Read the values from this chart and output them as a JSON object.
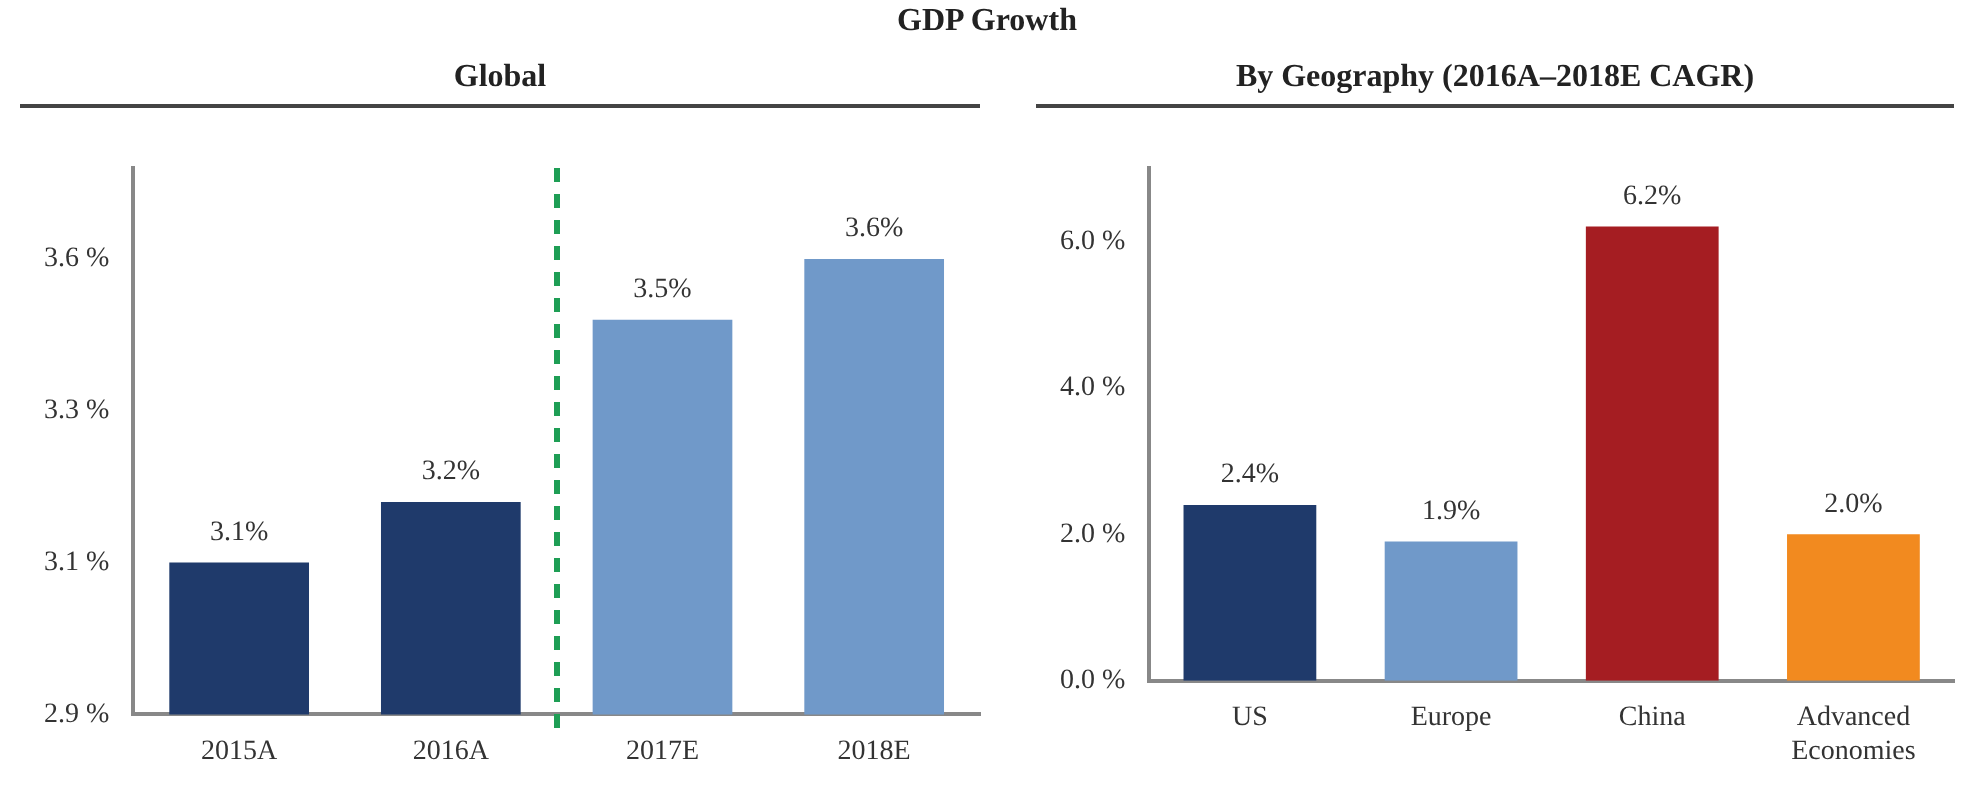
{
  "chart_data": [
    {
      "type": "bar",
      "title": "GDP Growth",
      "subtitle": "Global",
      "categories": [
        "2015A",
        "2016A",
        "2017E",
        "2018E"
      ],
      "values": [
        3.1,
        3.2,
        3.5,
        3.6
      ],
      "colors": [
        "#1f3a6b",
        "#1f3a6b",
        "#7099c9",
        "#7099c9"
      ],
      "value_labels": [
        "3.1%",
        "3.2%",
        "3.5%",
        "3.6%"
      ],
      "ylim": [
        2.85,
        3.75
      ],
      "yticks": [
        {
          "value": 2.85,
          "label": "2.9 %"
        },
        {
          "value": 3.1,
          "label": "3.1 %"
        },
        {
          "value": 3.35,
          "label": "3.3 %"
        },
        {
          "value": 3.6,
          "label": "3.6 %"
        }
      ],
      "grid": false,
      "legend": false
    },
    {
      "type": "bar",
      "subtitle": "By Geography (2016A–2018E CAGR)",
      "categories": [
        "US",
        "Europe",
        "China",
        "Advanced Economies"
      ],
      "values": [
        2.4,
        1.9,
        6.2,
        2.0
      ],
      "colors": [
        "#1f3a6b",
        "#7099c9",
        "#a51d22",
        "#f28a1f"
      ],
      "value_labels": [
        "2.4%",
        "1.9%",
        "6.2%",
        "2.0%"
      ],
      "ylim": [
        0,
        7
      ],
      "yticks": [
        {
          "value": 0,
          "label": "0.0 %"
        },
        {
          "value": 2,
          "label": "2.0 %"
        },
        {
          "value": 4,
          "label": "4.0 %"
        },
        {
          "value": 6,
          "label": "6.0 %"
        }
      ],
      "grid": false,
      "legend": false
    }
  ]
}
